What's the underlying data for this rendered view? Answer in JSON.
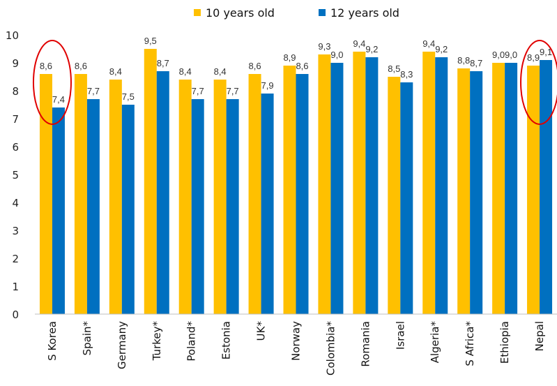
{
  "chart_data": {
    "type": "bar",
    "categories": [
      "S Korea",
      "Spain*",
      "Germany",
      "Turkey*",
      "Poland*",
      "Estonia",
      "UK*",
      "Norway",
      "Colombia*",
      "Romania",
      "Israel",
      "Algeria*",
      "S Africa*",
      "Ethiopia",
      "Nepal"
    ],
    "series": [
      {
        "name": "10 years old",
        "color": "#FFC000",
        "values": [
          8.6,
          8.6,
          8.4,
          9.5,
          8.4,
          8.4,
          8.6,
          8.9,
          9.3,
          9.4,
          8.5,
          9.4,
          8.8,
          9.0,
          8.9
        ],
        "labels": [
          "8,6",
          "8,6",
          "8,4",
          "9,5",
          "8,4",
          "8,4",
          "8,6",
          "8,9",
          "9,3",
          "9,4",
          "8,5",
          "9,4",
          "8,8",
          "9,0",
          "8,9"
        ]
      },
      {
        "name": "12 years old",
        "color": "#0070C0",
        "values": [
          7.4,
          7.7,
          7.5,
          8.7,
          7.7,
          7.7,
          7.9,
          8.6,
          9.0,
          9.2,
          8.3,
          9.2,
          8.7,
          9.0,
          9.1
        ],
        "labels": [
          "7,4",
          "7,7",
          "7,5",
          "8,7",
          "7,7",
          "7,7",
          "7,9",
          "8,6",
          "9,0",
          "9,2",
          "8,3",
          "9,2",
          "8,7",
          "9,0",
          "9,1"
        ]
      }
    ],
    "ylim": [
      0,
      10
    ],
    "yticks": [
      "0",
      "1",
      "2",
      "3",
      "4",
      "5",
      "6",
      "7",
      "8",
      "9",
      "10"
    ],
    "legend_position": "top-center",
    "grid": false,
    "highlights": {
      "categories": [
        "S Korea",
        "Nepal"
      ],
      "color": "#E00000",
      "shape": "ellipse"
    }
  }
}
